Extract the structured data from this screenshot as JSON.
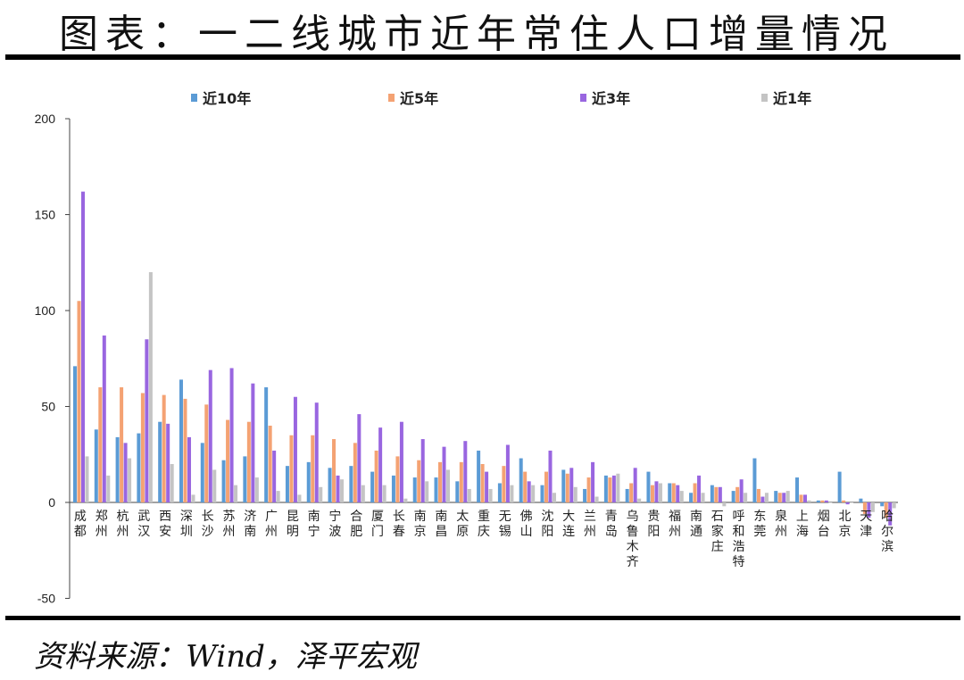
{
  "title": "图表：一二线城市近年常住人口增量情况",
  "source": "资料来源：Wind，泽平宏观",
  "colors": {
    "近10年": "#5b9bd5",
    "近5年": "#f4a273",
    "近3年": "#9966e0",
    "近1年": "#c4c4c4"
  },
  "chart_data": {
    "type": "bar",
    "ylim": [
      -50,
      200
    ],
    "yticks": [
      -50,
      0,
      50,
      100,
      150,
      200
    ],
    "legend_position": "top",
    "grid": false,
    "categories": [
      "成都",
      "郑州",
      "杭州",
      "武汉",
      "西安",
      "深圳",
      "长沙",
      "苏州",
      "济南",
      "广州",
      "昆明",
      "南宁",
      "宁波",
      "合肥",
      "厦门",
      "长春",
      "南京",
      "南昌",
      "太原",
      "重庆",
      "无锡",
      "佛山",
      "沈阳",
      "大连",
      "兰州",
      "青岛",
      "乌鲁木齐",
      "贵阳",
      "福州",
      "南通",
      "石家庄",
      "呼和浩特",
      "东莞",
      "泉州",
      "上海",
      "烟台",
      "北京",
      "天津",
      "哈尔滨"
    ],
    "series": [
      {
        "name": "近10年",
        "values": [
          71,
          38,
          34,
          36,
          42,
          64,
          31,
          22,
          24,
          60,
          19,
          21,
          18,
          19,
          16,
          14,
          13,
          13,
          11,
          27,
          10,
          23,
          9,
          17,
          7,
          14,
          7,
          16,
          10,
          5,
          9,
          6,
          23,
          6,
          13,
          1,
          16,
          2,
          -2
        ]
      },
      {
        "name": "近5年",
        "values": [
          105,
          60,
          60,
          57,
          56,
          54,
          51,
          43,
          42,
          40,
          35,
          35,
          33,
          31,
          27,
          24,
          22,
          21,
          21,
          20,
          19,
          16,
          16,
          15,
          13,
          13,
          10,
          9,
          10,
          10,
          8,
          8,
          7,
          5,
          4,
          1,
          1,
          -6,
          -8
        ]
      },
      {
        "name": "近3年",
        "values": [
          162,
          87,
          31,
          85,
          41,
          34,
          69,
          70,
          62,
          27,
          55,
          52,
          14,
          46,
          39,
          42,
          33,
          29,
          32,
          16,
          30,
          11,
          27,
          18,
          21,
          14,
          18,
          11,
          9,
          14,
          8,
          12,
          3,
          5,
          4,
          1,
          -1,
          -8,
          -12
        ]
      },
      {
        "name": "近1年",
        "values": [
          24,
          14,
          23,
          120,
          20,
          4,
          17,
          9,
          13,
          6,
          4,
          8,
          12,
          9,
          9,
          2,
          11,
          17,
          7,
          7,
          9,
          9,
          5,
          8,
          3,
          15,
          2,
          10,
          6,
          5,
          -2,
          5,
          5,
          6,
          1,
          0,
          0,
          -5,
          -3
        ]
      }
    ]
  }
}
